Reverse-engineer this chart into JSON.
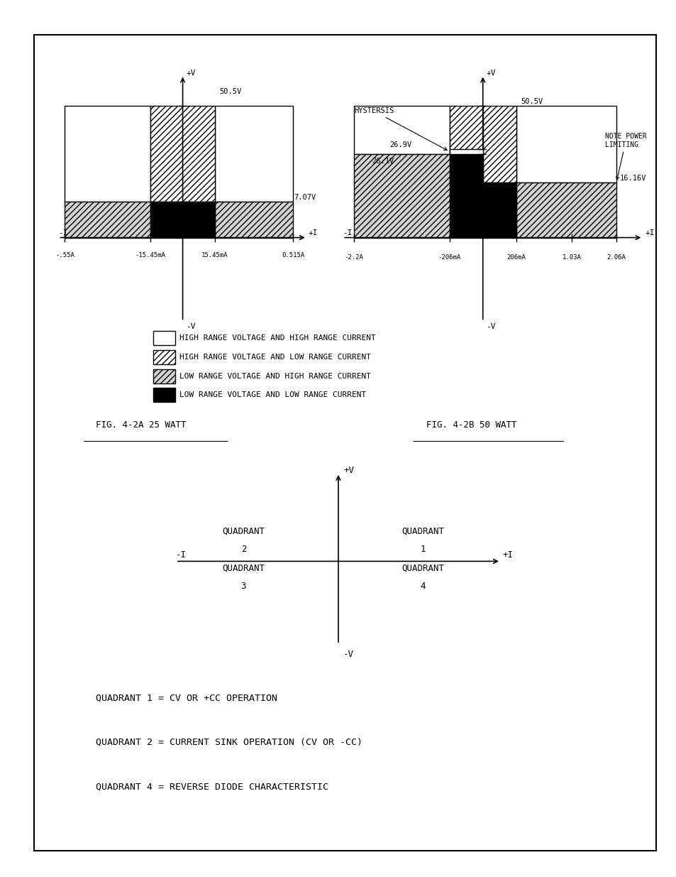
{
  "fig1_title": "FIG. 4-2A 25 WATT",
  "fig1_label_50_5": "50.5V",
  "fig1_label_7_07": "7.07V",
  "fig1_labels_x": [
    "-.55A",
    "-15.45mA",
    "15.45mA",
    "0.515A"
  ],
  "fig2_title": "FIG. 4-2B 50 WATT",
  "fig2_label_50_5": "50.5V",
  "fig2_label_26_9": "26.9V",
  "fig2_label_26_1": "26.1V",
  "fig2_label_16_16": "16.16V",
  "fig2_note": "NOTE POWER\nLIMITING",
  "fig2_hystersis_label": "HYSTERSIS",
  "fig2_labels_x": [
    "-2.2A",
    "-206mA",
    "206mA",
    "1.03A",
    "2.06A"
  ],
  "legend_labels": [
    "HIGH RANGE VOLTAGE AND HIGH RANGE CURRENT",
    "HIGH RANGE VOLTAGE AND LOW RANGE CURRENT",
    "LOW RANGE VOLTAGE AND HIGH RANGE CURRENT",
    "LOW RANGE VOLTAGE AND LOW RANGE CURRENT"
  ],
  "legend_hatches": [
    "",
    "////",
    "////",
    "...."
  ],
  "legend_fcs": [
    "white",
    "white",
    "lightgray",
    "black"
  ],
  "quadrant_text": [
    "QUADRANT 1 = CV OR +CC OPERATION",
    "QUADRANT 2 = CURRENT SINK OPERATION (CV OR -CC)",
    "QUADRANT 4 = REVERSE DIODE CHARACTERISTIC"
  ]
}
